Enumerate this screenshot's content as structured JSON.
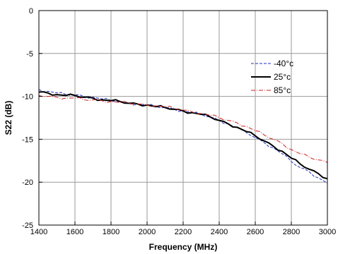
{
  "chart_data": {
    "type": "line",
    "xlabel": "Frequency (MHz)",
    "ylabel": "S22 (dB)",
    "xlim": [
      1400,
      3000
    ],
    "ylim": [
      -25,
      0
    ],
    "xticks": [
      1400,
      1600,
      1800,
      2000,
      2200,
      2400,
      2600,
      2800,
      3000
    ],
    "yticks": [
      0,
      -5,
      -10,
      -15,
      -20,
      -25
    ],
    "grid": true,
    "legend_position": "top-right",
    "x": [
      1400,
      1450,
      1500,
      1550,
      1600,
      1650,
      1700,
      1750,
      1800,
      1850,
      1900,
      1950,
      2000,
      2050,
      2100,
      2150,
      2200,
      2250,
      2300,
      2350,
      2400,
      2450,
      2500,
      2550,
      2600,
      2650,
      2700,
      2750,
      2800,
      2850,
      2900,
      2950,
      3000
    ],
    "series": [
      {
        "name": "-40°c",
        "style": "dashed",
        "color": "#1f2fbf",
        "values": [
          -9.2,
          -9.4,
          -9.6,
          -9.8,
          -9.8,
          -10.0,
          -10.1,
          -10.3,
          -10.5,
          -10.6,
          -10.8,
          -10.9,
          -11.0,
          -11.2,
          -11.3,
          -11.5,
          -11.7,
          -11.9,
          -12.1,
          -12.4,
          -12.8,
          -13.2,
          -13.7,
          -14.2,
          -14.8,
          -15.4,
          -16.0,
          -16.7,
          -17.6,
          -18.3,
          -18.8,
          -19.5,
          -20.1
        ]
      },
      {
        "name": "25°c",
        "style": "solid",
        "color": "#000000",
        "values": [
          -9.5,
          -9.6,
          -9.8,
          -9.9,
          -9.9,
          -10.1,
          -10.2,
          -10.4,
          -10.5,
          -10.6,
          -10.8,
          -10.9,
          -11.0,
          -11.2,
          -11.3,
          -11.5,
          -11.7,
          -11.9,
          -12.1,
          -12.4,
          -12.8,
          -13.2,
          -13.6,
          -14.1,
          -14.6,
          -15.2,
          -15.8,
          -16.4,
          -17.2,
          -17.9,
          -18.5,
          -19.0,
          -19.6
        ]
      },
      {
        "name": "85°c",
        "style": "dashdot",
        "color": "#cc1f1f",
        "values": [
          -9.9,
          -10.0,
          -10.1,
          -10.2,
          -10.2,
          -10.4,
          -10.4,
          -10.5,
          -10.6,
          -10.7,
          -10.8,
          -10.9,
          -11.0,
          -11.1,
          -11.2,
          -11.4,
          -11.6,
          -11.8,
          -12.0,
          -12.2,
          -12.5,
          -12.8,
          -13.1,
          -13.5,
          -14.0,
          -14.5,
          -15.0,
          -15.5,
          -16.2,
          -16.7,
          -17.1,
          -17.4,
          -17.7
        ]
      }
    ]
  }
}
